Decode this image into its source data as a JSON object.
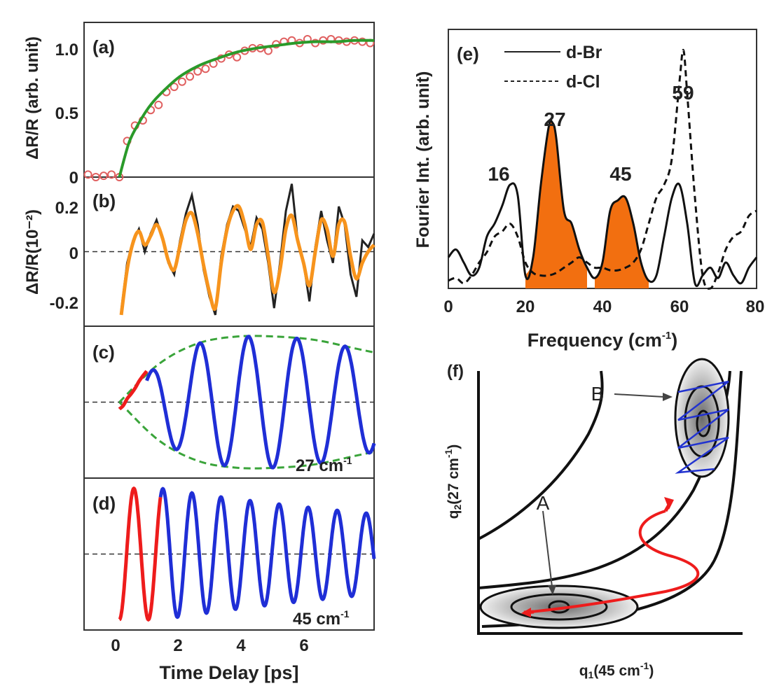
{
  "chart_data": [
    {
      "panel": "(a)",
      "type": "scatter",
      "ylabel": "ΔR/R (arb. unit)",
      "xlim": [
        -0.9,
        6.5
      ],
      "ylim": [
        0,
        1.2
      ],
      "yticks": [
        "0",
        "0.5",
        "1.0"
      ],
      "series": [
        {
          "values_desc": "data points",
          "x": [
            -0.8,
            -0.6,
            -0.4,
            -0.2,
            0.0,
            0.2,
            0.4,
            0.6,
            0.8,
            1.0,
            1.2,
            1.4,
            1.6,
            1.8,
            2.0,
            2.2,
            2.4,
            2.6,
            2.8,
            3.0,
            3.2,
            3.4,
            3.6,
            3.8,
            4.0,
            4.2,
            4.4,
            4.6,
            4.8,
            5.0,
            5.2,
            5.4,
            5.6,
            5.8,
            6.0,
            6.2,
            6.4
          ],
          "y": [
            0.02,
            0.0,
            0.01,
            0.02,
            0.0,
            0.28,
            0.4,
            0.44,
            0.52,
            0.56,
            0.66,
            0.7,
            0.74,
            0.78,
            0.82,
            0.84,
            0.88,
            0.92,
            0.95,
            0.93,
            0.98,
            1.0,
            1.0,
            0.98,
            1.03,
            1.05,
            1.06,
            1.04,
            1.07,
            1.04,
            1.06,
            1.07,
            1.06,
            1.05,
            1.06,
            1.05,
            1.04
          ]
        },
        {
          "values_desc": "fit",
          "x": [
            0,
            0.25,
            0.5,
            0.75,
            1,
            1.5,
            2,
            2.5,
            3,
            3.5,
            4,
            4.5,
            5,
            5.5,
            6,
            6.5
          ],
          "y": [
            0,
            0.27,
            0.42,
            0.54,
            0.63,
            0.77,
            0.86,
            0.92,
            0.97,
            1.0,
            1.02,
            1.04,
            1.05,
            1.05,
            1.06,
            1.06
          ]
        }
      ]
    },
    {
      "panel": "(b)",
      "type": "line",
      "ylabel": "ΔR/R(10⁻²)",
      "xlim": [
        -0.9,
        6.5
      ],
      "ylim": [
        -0.33,
        0.33
      ],
      "yticks": [
        "-0.2",
        "0",
        "0.2"
      ],
      "series": [
        {
          "values_desc": "measured",
          "x": [
            0.05,
            0.2,
            0.35,
            0.5,
            0.65,
            0.8,
            0.95,
            1.1,
            1.25,
            1.4,
            1.55,
            1.7,
            1.85,
            2.0,
            2.15,
            2.3,
            2.45,
            2.6,
            2.75,
            2.9,
            3.05,
            3.2,
            3.35,
            3.5,
            3.65,
            3.8,
            3.95,
            4.1,
            4.25,
            4.4,
            4.55,
            4.7,
            4.85,
            5.0,
            5.15,
            5.3,
            5.45,
            5.6,
            5.75,
            5.9,
            6.05,
            6.2,
            6.35,
            6.5
          ],
          "y": [
            -0.26,
            -0.05,
            0.05,
            0.1,
            0.0,
            0.08,
            0.14,
            0.06,
            -0.05,
            -0.1,
            0.05,
            0.17,
            0.25,
            0.12,
            -0.08,
            -0.2,
            -0.28,
            -0.02,
            0.12,
            0.2,
            0.18,
            0.1,
            0.02,
            0.15,
            0.1,
            -0.05,
            -0.25,
            -0.05,
            0.18,
            0.3,
            0.05,
            -0.05,
            -0.22,
            0.02,
            0.18,
            0.05,
            -0.05,
            0.2,
            0.12,
            -0.1,
            -0.2,
            0.05,
            0.02,
            0.08
          ]
        },
        {
          "values_desc": "fit",
          "x": [
            0.05,
            0.2,
            0.35,
            0.5,
            0.65,
            0.8,
            0.95,
            1.1,
            1.25,
            1.4,
            1.55,
            1.7,
            1.85,
            2.0,
            2.15,
            2.3,
            2.45,
            2.6,
            2.75,
            2.9,
            3.05,
            3.2,
            3.35,
            3.5,
            3.65,
            3.8,
            3.95,
            4.1,
            4.25,
            4.4,
            4.55,
            4.7,
            4.85,
            5.0,
            5.15,
            5.3,
            5.45,
            5.6,
            5.75,
            5.9,
            6.05,
            6.2,
            6.35,
            6.5
          ],
          "y": [
            -0.28,
            -0.08,
            0.04,
            0.09,
            0.03,
            0.07,
            0.12,
            0.06,
            -0.04,
            -0.08,
            0.03,
            0.14,
            0.17,
            0.08,
            -0.06,
            -0.18,
            -0.25,
            -0.05,
            0.1,
            0.18,
            0.2,
            0.12,
            0.01,
            0.12,
            0.13,
            -0.02,
            -0.18,
            -0.08,
            0.1,
            0.16,
            0.05,
            -0.05,
            -0.15,
            0.0,
            0.14,
            0.1,
            -0.02,
            0.12,
            0.13,
            -0.02,
            -0.12,
            -0.05,
            0.0,
            0.03
          ]
        }
      ]
    },
    {
      "panel": "(c)",
      "type": "line",
      "annotation": "27 cm",
      "xlim": [
        -0.9,
        6.5
      ],
      "ylim": [
        -1.1,
        1.1
      ],
      "frequency_cm1": 27,
      "series": [
        {
          "values_desc": "red initial segment",
          "x": [
            0,
            0.1,
            0.2,
            0.3,
            0.4,
            0.5,
            0.6,
            0.7
          ],
          "y": [
            -0.1,
            -0.05,
            0.05,
            0.12,
            0.2,
            0.3,
            0.38,
            0.45
          ]
        },
        {
          "values_desc": "blue oscillation",
          "start": 0.7,
          "end": 6.5,
          "frequency_cm1": 27
        },
        {
          "values_desc": "green envelope",
          "x": [
            0,
            1,
            2,
            3,
            4,
            5,
            6,
            6.5
          ],
          "y": [
            0.0,
            0.55,
            0.85,
            0.95,
            0.95,
            0.9,
            0.78,
            0.72
          ]
        }
      ]
    },
    {
      "panel": "(d)",
      "type": "line",
      "annotation": "45 cm",
      "xlabel": "Time Delay [ps]",
      "xlim": [
        -0.9,
        6.5
      ],
      "xticks": [
        "0",
        "2",
        "4",
        "6"
      ],
      "ylim": [
        -1.1,
        1.1
      ],
      "frequency_cm1": 45,
      "series": [
        {
          "values_desc": "red initial segment",
          "start": 0,
          "end": 1.05,
          "frequency_cm1": 45
        },
        {
          "values_desc": "blue oscillation",
          "start": 1.05,
          "end": 6.5,
          "frequency_cm1": 45
        }
      ]
    },
    {
      "panel": "(e)",
      "type": "line",
      "xlabel": "Frequency (cm",
      "ylabel": "Fourier Int. (arb. unit)",
      "xlim": [
        0,
        80
      ],
      "xticks": [
        "0",
        "20",
        "40",
        "60",
        "80"
      ],
      "ylim": [
        0,
        1.0
      ],
      "legend": [
        "d-Br",
        "d-Cl"
      ],
      "peak_labels": [
        "16",
        "27",
        "45",
        "59"
      ],
      "peak_label_x": [
        16,
        27,
        45,
        59
      ],
      "series": [
        {
          "name": "d-Br",
          "style": "solid",
          "x": [
            0,
            2,
            4,
            6,
            8,
            10,
            12,
            14,
            16,
            18,
            20,
            22,
            24,
            26,
            27,
            28,
            30,
            32,
            34,
            36,
            38,
            40,
            42,
            44,
            46,
            48,
            50,
            52,
            54,
            56,
            58,
            60,
            62,
            64,
            66,
            68,
            70,
            72,
            74,
            76,
            78,
            80
          ],
          "y": [
            0.12,
            0.15,
            0.1,
            0.05,
            0.08,
            0.2,
            0.25,
            0.32,
            0.4,
            0.36,
            0.05,
            0.12,
            0.4,
            0.62,
            0.64,
            0.58,
            0.3,
            0.25,
            0.15,
            0.08,
            0.04,
            0.1,
            0.3,
            0.34,
            0.35,
            0.25,
            0.1,
            0.03,
            0.05,
            0.2,
            0.35,
            0.4,
            0.25,
            0.02,
            0.05,
            0.08,
            0.04,
            0.1,
            0.05,
            0.02,
            0.08,
            0.12
          ]
        },
        {
          "name": "d-Cl",
          "style": "dashed",
          "x": [
            0,
            2,
            4,
            6,
            8,
            10,
            12,
            14,
            16,
            18,
            20,
            22,
            24,
            26,
            28,
            30,
            32,
            34,
            36,
            38,
            40,
            42,
            44,
            46,
            48,
            50,
            52,
            54,
            56,
            58,
            60,
            61,
            62,
            64,
            66,
            68,
            70,
            72,
            74,
            76,
            78,
            80
          ],
          "y": [
            0.03,
            0.04,
            0.02,
            0.05,
            0.1,
            0.14,
            0.2,
            0.22,
            0.25,
            0.2,
            0.1,
            0.06,
            0.05,
            0.05,
            0.06,
            0.08,
            0.1,
            0.12,
            0.1,
            0.08,
            0.08,
            0.07,
            0.07,
            0.08,
            0.1,
            0.15,
            0.25,
            0.35,
            0.4,
            0.5,
            0.8,
            0.92,
            0.75,
            0.35,
            0.05,
            0.0,
            0.06,
            0.15,
            0.2,
            0.22,
            0.28,
            0.3
          ]
        }
      ],
      "filled_regions_cm1": [
        [
          20,
          36
        ],
        [
          38,
          52
        ]
      ]
    }
  ],
  "diagram": {
    "panel_label": "(f)",
    "label_A": "A",
    "label_B": "B",
    "y_axis_label": "q",
    "x_axis_label": "q",
    "y_axis_paren": "(27 cm",
    "x_axis_paren": "(45 cm",
    "y_sub": "2",
    "x_sub": "1",
    "sup": "-1",
    "close_paren": ")"
  },
  "panel_c_unit_sup": "-1",
  "panel_d_unit_sup": "-1",
  "panel_e_unit_sup": "-1",
  "panel_e_close": ")",
  "panel_b_ylabel_sup": "-2",
  "colors": {
    "data_points": "#e06060",
    "fit_green": "#2a9a2a",
    "orange": "#f7941d",
    "blue": "#1f2ed6",
    "red": "#ee1c1c",
    "envelope": "#3aa43a",
    "fill_orange": "#f26f10"
  }
}
